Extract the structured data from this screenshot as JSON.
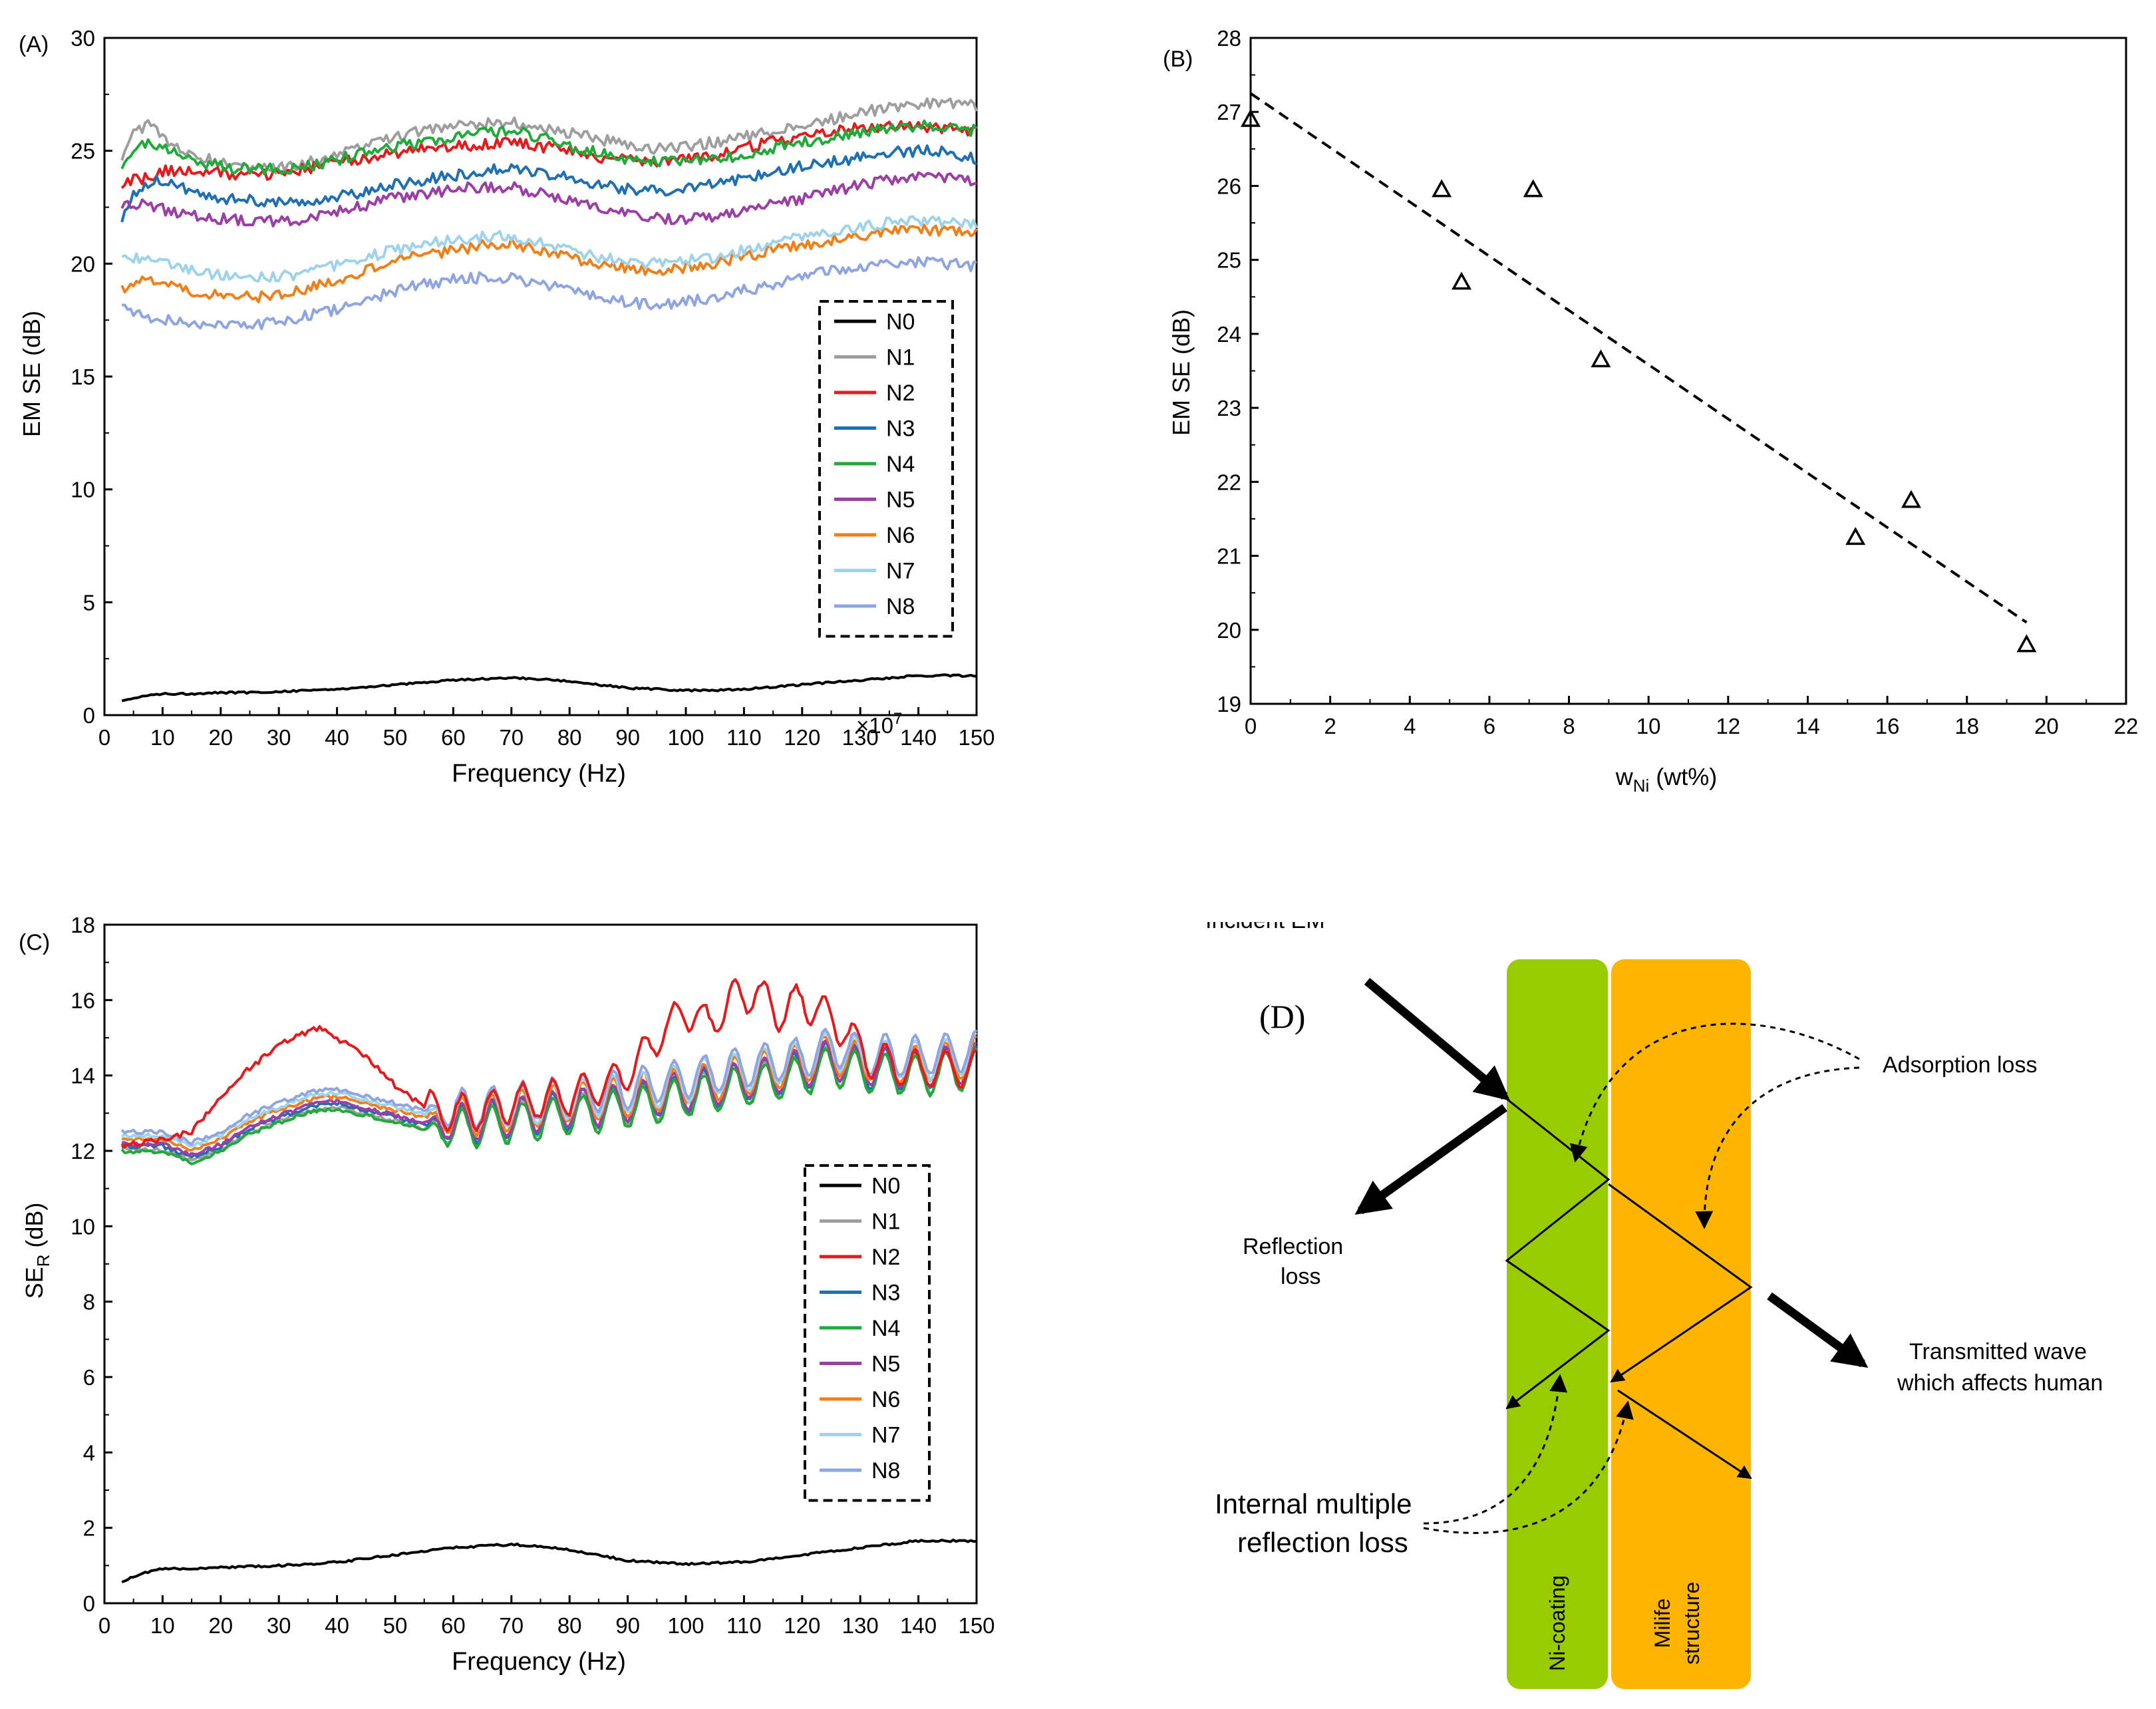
{
  "chart_data": [
    {
      "panel": "(A)",
      "type": "line",
      "xlabel": "Frequency (Hz)",
      "x_multiplier": "×10",
      "x_multiplier_exp": "7",
      "ylabel": "EM SE (dB)",
      "xlim": [
        0,
        150
      ],
      "ylim": [
        0,
        30
      ],
      "xticks": [
        "0",
        "10",
        "20",
        "30",
        "40",
        "50",
        "60",
        "70",
        "80",
        "90",
        "100",
        "110",
        "120",
        "130",
        "140",
        "150"
      ],
      "yticks": [
        "0",
        "5",
        "10",
        "15",
        "20",
        "25",
        "30"
      ],
      "legend_position": "right-middle",
      "x": [
        3,
        5,
        8,
        10,
        15,
        20,
        25,
        30,
        35,
        40,
        45,
        50,
        55,
        60,
        65,
        70,
        75,
        80,
        85,
        90,
        95,
        100,
        105,
        110,
        115,
        120,
        125,
        130,
        135,
        140,
        145,
        150
      ],
      "series": [
        {
          "name": "N0",
          "color": "#000000",
          "values": [
            0.6,
            0.75,
            0.9,
            0.95,
            0.95,
            1.0,
            1.0,
            1.05,
            1.1,
            1.15,
            1.25,
            1.35,
            1.45,
            1.55,
            1.6,
            1.65,
            1.6,
            1.5,
            1.35,
            1.2,
            1.15,
            1.1,
            1.1,
            1.15,
            1.25,
            1.35,
            1.45,
            1.55,
            1.65,
            1.75,
            1.75,
            1.75
          ]
        },
        {
          "name": "N1",
          "color": "#9e9e9e",
          "values": [
            24.6,
            25.9,
            26.2,
            25.5,
            24.8,
            24.5,
            24.2,
            24.2,
            24.5,
            24.8,
            25.2,
            25.6,
            25.9,
            26.1,
            26.2,
            26.3,
            26.0,
            25.8,
            25.5,
            25.3,
            25.1,
            25.2,
            25.4,
            25.6,
            25.9,
            26.1,
            26.4,
            26.7,
            26.9,
            27.1,
            27.1,
            27.0
          ]
        },
        {
          "name": "N2",
          "color": "#e41a1c",
          "values": [
            23.5,
            23.7,
            23.8,
            24.1,
            24.1,
            24.0,
            23.9,
            24.0,
            24.2,
            24.5,
            24.7,
            24.9,
            25.1,
            25.2,
            25.3,
            25.4,
            25.2,
            25.0,
            24.7,
            24.6,
            24.5,
            24.6,
            24.8,
            25.1,
            25.4,
            25.6,
            25.9,
            26.0,
            26.1,
            26.1,
            26.0,
            25.9
          ]
        },
        {
          "name": "N3",
          "color": "#1f6fb4",
          "values": [
            21.8,
            23.0,
            23.6,
            23.7,
            23.2,
            22.9,
            22.8,
            22.7,
            22.8,
            23.0,
            23.2,
            23.5,
            23.7,
            23.9,
            24.1,
            24.2,
            24.0,
            23.8,
            23.5,
            23.3,
            23.2,
            23.3,
            23.5,
            23.8,
            24.0,
            24.3,
            24.5,
            24.7,
            24.9,
            25.0,
            25.0,
            24.6
          ]
        },
        {
          "name": "N4",
          "color": "#1faa3a",
          "values": [
            24.0,
            25.0,
            25.4,
            25.1,
            24.6,
            24.3,
            24.2,
            24.2,
            24.3,
            24.6,
            24.9,
            25.2,
            25.4,
            25.6,
            25.8,
            25.9,
            25.6,
            25.2,
            24.9,
            24.6,
            24.5,
            24.5,
            24.6,
            24.8,
            25.1,
            25.4,
            25.6,
            25.8,
            26.0,
            26.1,
            26.0,
            25.9
          ]
        },
        {
          "name": "N5",
          "color": "#9b3fa6",
          "values": [
            22.6,
            22.7,
            22.5,
            22.4,
            22.2,
            22.0,
            21.9,
            21.9,
            22.0,
            22.3,
            22.6,
            22.9,
            23.1,
            23.3,
            23.4,
            23.4,
            23.1,
            22.8,
            22.5,
            22.2,
            22.0,
            22.0,
            22.1,
            22.3,
            22.6,
            22.9,
            23.2,
            23.5,
            23.7,
            23.8,
            23.8,
            23.7
          ]
        },
        {
          "name": "N6",
          "color": "#f07f1a",
          "values": [
            18.8,
            19.2,
            19.3,
            19.2,
            18.8,
            18.6,
            18.5,
            18.6,
            18.9,
            19.3,
            19.7,
            20.1,
            20.4,
            20.6,
            20.8,
            20.9,
            20.6,
            20.3,
            20.0,
            19.8,
            19.7,
            19.8,
            20.0,
            20.3,
            20.6,
            20.8,
            21.0,
            21.2,
            21.4,
            21.5,
            21.4,
            21.3
          ]
        },
        {
          "name": "N7",
          "color": "#9fd3ec",
          "values": [
            20.1,
            20.3,
            20.2,
            20.0,
            19.7,
            19.5,
            19.4,
            19.4,
            19.6,
            19.9,
            20.3,
            20.6,
            20.9,
            21.1,
            21.2,
            21.2,
            20.9,
            20.6,
            20.3,
            20.1,
            20.0,
            20.1,
            20.3,
            20.6,
            20.9,
            21.2,
            21.4,
            21.6,
            21.8,
            21.9,
            21.8,
            21.7
          ]
        },
        {
          "name": "N8",
          "color": "#8ea5e2",
          "values": [
            18.2,
            17.9,
            17.6,
            17.5,
            17.4,
            17.3,
            17.3,
            17.4,
            17.7,
            18.0,
            18.4,
            18.8,
            19.1,
            19.3,
            19.4,
            19.4,
            19.1,
            18.8,
            18.5,
            18.3,
            18.2,
            18.3,
            18.5,
            18.8,
            19.1,
            19.4,
            19.7,
            19.9,
            20.0,
            20.1,
            20.0,
            19.9
          ]
        }
      ]
    },
    {
      "panel": "(B)",
      "type": "scatter",
      "xlabel": "w",
      "xlabel_sub": "Ni",
      "xlabel_rest": " (wt%)",
      "ylabel": "EM SE (dB)",
      "xlim": [
        0,
        22
      ],
      "ylim": [
        19,
        28
      ],
      "xticks": [
        "0",
        "2",
        "4",
        "6",
        "8",
        "10",
        "12",
        "14",
        "16",
        "18",
        "20",
        "22"
      ],
      "yticks": [
        "19",
        "20",
        "21",
        "22",
        "23",
        "24",
        "25",
        "26",
        "27",
        "28"
      ],
      "points": [
        {
          "x": 0.0,
          "y": 26.9
        },
        {
          "x": 4.8,
          "y": 25.95
        },
        {
          "x": 5.3,
          "y": 24.7
        },
        {
          "x": 7.1,
          "y": 25.95
        },
        {
          "x": 8.8,
          "y": 23.65
        },
        {
          "x": 15.2,
          "y": 21.25
        },
        {
          "x": 16.6,
          "y": 21.75
        },
        {
          "x": 19.5,
          "y": 19.8
        }
      ],
      "fit_line": {
        "x": [
          0,
          19.5
        ],
        "y": [
          27.25,
          20.1
        ],
        "style": "dashed"
      }
    },
    {
      "panel": "(C)",
      "type": "line",
      "xlabel": "Frequency (Hz)",
      "ylabel": "SE",
      "ylabel_sub": "R",
      "ylabel_rest": " (dB)",
      "xlim": [
        0,
        150
      ],
      "ylim": [
        0,
        19
      ],
      "xticks": [
        "0",
        "10",
        "20",
        "30",
        "40",
        "50",
        "60",
        "70",
        "80",
        "90",
        "100",
        "110",
        "120",
        "130",
        "140",
        "150"
      ],
      "yticks": [
        "0",
        "2",
        "4",
        "6",
        "8",
        "10",
        "12",
        "14",
        "16",
        "18"
      ],
      "legend_position": "right-middle",
      "series": [
        {
          "name": "N0",
          "color": "#000000"
        },
        {
          "name": "N1",
          "color": "#9e9e9e"
        },
        {
          "name": "N2",
          "color": "#e41a1c"
        },
        {
          "name": "N3",
          "color": "#1f6fb4"
        },
        {
          "name": "N4",
          "color": "#1faa3a"
        },
        {
          "name": "N5",
          "color": "#9b3fa6"
        },
        {
          "name": "N6",
          "color": "#f07f1a"
        },
        {
          "name": "N7",
          "color": "#9fd3ec"
        },
        {
          "name": "N8",
          "color": "#8ea5e2"
        }
      ],
      "n0_curve": {
        "x": [
          3,
          5,
          8,
          10,
          20,
          30,
          40,
          50,
          60,
          70,
          80,
          90,
          100,
          110,
          120,
          130,
          140,
          150
        ],
        "y": [
          0.6,
          0.75,
          0.9,
          0.95,
          1.0,
          1.05,
          1.15,
          1.35,
          1.55,
          1.65,
          1.5,
          1.2,
          1.1,
          1.15,
          1.35,
          1.55,
          1.75,
          1.75
        ]
      },
      "base_curve": {
        "x": [
          3,
          10,
          15,
          20,
          25,
          30,
          35,
          40,
          45,
          50,
          55,
          60,
          70,
          80,
          90,
          100,
          110,
          120,
          125,
          130,
          140,
          150
        ],
        "y": [
          12.8,
          12.8,
          12.5,
          12.8,
          13.3,
          13.6,
          13.9,
          14.0,
          13.8,
          13.6,
          13.4,
          13.4,
          13.6,
          13.8,
          14.0,
          14.3,
          14.6,
          14.9,
          15.2,
          15.0,
          14.9,
          15.1
        ]
      },
      "n2_curve": {
        "x": [
          3,
          10,
          15,
          20,
          25,
          30,
          33,
          37,
          40,
          43,
          47,
          50,
          55,
          60,
          65,
          70,
          80,
          88,
          92,
          96,
          100,
          104,
          108,
          112,
          116,
          120,
          124,
          128,
          132,
          140,
          150
        ],
        "y": [
          12.8,
          13.0,
          13.2,
          14.2,
          15.0,
          15.6,
          15.9,
          16.1,
          15.8,
          15.6,
          15.0,
          14.5,
          13.9,
          13.7,
          13.8,
          14.0,
          14.2,
          14.6,
          15.2,
          16.0,
          16.6,
          16.2,
          16.9,
          17.1,
          16.5,
          16.9,
          16.5,
          15.9,
          15.2,
          14.9,
          15.0
        ]
      }
    }
  ],
  "diagram": {
    "panel": "(D)",
    "incident_label": "Incident EM",
    "adsorption_label": "Adsorption loss",
    "reflection_line1": "Reflection",
    "reflection_line2": "loss",
    "transmitted_line1": "Transmitted wave",
    "transmitted_line2": "which affects human",
    "internal_line1": "Internal multiple",
    "internal_line2": "reflection loss",
    "layer1_label": "Ni-coating",
    "layer2_label_line1": "Milife",
    "layer2_label_line2": "structure",
    "layer1_color": "#99cc00",
    "layer2_color": "#ffb400"
  }
}
